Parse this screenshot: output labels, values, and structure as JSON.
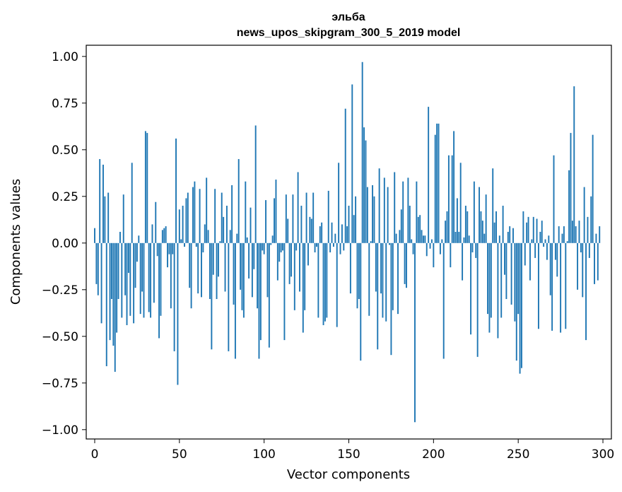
{
  "chart_data": {
    "type": "bar",
    "title_line1": "эльба",
    "title_line2": "news_upos_skipgram_300_5_2019 model",
    "xlabel": "Vector components",
    "ylabel": "Components values",
    "xlim": [
      -5,
      305
    ],
    "ylim": [
      -1.05,
      1.06
    ],
    "xticks": [
      0,
      50,
      100,
      150,
      200,
      250,
      300
    ],
    "xtick_labels": [
      "0",
      "50",
      "100",
      "150",
      "200",
      "250",
      "300"
    ],
    "yticks": [
      1.0,
      0.75,
      0.5,
      0.25,
      0.0,
      -0.25,
      -0.5,
      -0.75,
      -1.0
    ],
    "ytick_labels": [
      "1.00",
      "0.75",
      "0.50",
      "0.25",
      "0.00",
      "−0.25",
      "−0.50",
      "−0.75",
      "−1.00"
    ],
    "bar_color": "#1f77b4",
    "values": [
      0.08,
      -0.22,
      -0.28,
      0.45,
      -0.43,
      0.42,
      0.25,
      -0.66,
      0.27,
      -0.52,
      -0.3,
      -0.55,
      -0.69,
      -0.48,
      -0.3,
      0.06,
      -0.4,
      0.26,
      -0.28,
      -0.44,
      -0.16,
      -0.39,
      0.43,
      -0.43,
      -0.24,
      -0.1,
      0.04,
      -0.38,
      -0.26,
      -0.4,
      0.6,
      0.59,
      -0.37,
      -0.4,
      0.1,
      -0.32,
      0.22,
      -0.07,
      -0.51,
      -0.39,
      0.07,
      0.08,
      0.09,
      -0.13,
      -0.06,
      -0.35,
      -0.06,
      -0.58,
      0.56,
      -0.76,
      0.18,
      0.02,
      0.2,
      -0.02,
      0.24,
      0.27,
      -0.24,
      -0.35,
      0.3,
      0.33,
      -0.02,
      -0.27,
      0.29,
      -0.29,
      -0.05,
      0.1,
      0.35,
      0.07,
      -0.3,
      -0.57,
      -0.17,
      0.29,
      -0.3,
      -0.18,
      0.01,
      0.27,
      0.14,
      -0.26,
      0.2,
      -0.58,
      0.07,
      0.31,
      -0.33,
      -0.62,
      0.05,
      0.45,
      -0.25,
      -0.36,
      -0.4,
      0.33,
      0.03,
      -0.19,
      0.19,
      -0.29,
      -0.14,
      0.63,
      -0.35,
      -0.62,
      -0.52,
      -0.04,
      -0.06,
      0.23,
      -0.29,
      -0.56,
      -0.01,
      0.04,
      0.24,
      0.34,
      -0.2,
      -0.1,
      -0.05,
      -0.04,
      -0.52,
      0.26,
      0.13,
      -0.22,
      -0.18,
      0.26,
      -0.36,
      -0.04,
      0.38,
      -0.26,
      0.2,
      -0.48,
      -0.36,
      0.27,
      -0.12,
      0.14,
      0.13,
      0.27,
      -0.05,
      -0.02,
      -0.4,
      0.09,
      0.11,
      -0.44,
      -0.42,
      -0.4,
      0.28,
      -0.05,
      0.11,
      -0.02,
      0.05,
      -0.45,
      0.43,
      -0.06,
      0.1,
      -0.04,
      0.72,
      0.09,
      0.2,
      -0.27,
      0.85,
      0.15,
      0.25,
      -0.35,
      -0.3,
      -0.63,
      0.97,
      0.62,
      0.55,
      0.3,
      -0.39,
      0.01,
      0.31,
      0.25,
      -0.26,
      -0.57,
      0.4,
      -0.27,
      -0.4,
      0.35,
      -0.42,
      0.3,
      -0.01,
      -0.6,
      -0.36,
      0.38,
      0.05,
      -0.38,
      0.07,
      0.18,
      0.33,
      -0.22,
      -0.24,
      0.35,
      0.2,
      0.02,
      -0.06,
      -0.96,
      0.33,
      0.14,
      0.15,
      0.07,
      0.04,
      0.04,
      -0.07,
      0.73,
      -0.03,
      0.02,
      -0.13,
      0.58,
      0.64,
      0.64,
      -0.06,
      0.02,
      -0.62,
      0.12,
      0.17,
      0.47,
      -0.13,
      0.47,
      0.6,
      0.06,
      0.24,
      0.06,
      0.43,
      -0.2,
      0.03,
      0.2,
      0.17,
      0.04,
      -0.49,
      -0.05,
      0.33,
      -0.08,
      -0.61,
      0.3,
      0.17,
      0.12,
      0.05,
      0.26,
      -0.38,
      -0.48,
      -0.4,
      0.4,
      0.11,
      0.17,
      -0.51,
      0.04,
      -0.4,
      0.2,
      -0.17,
      -0.3,
      0.06,
      0.09,
      -0.33,
      0.08,
      -0.42,
      -0.63,
      -0.38,
      -0.7,
      -0.67,
      0.17,
      -0.12,
      0.11,
      0.14,
      -0.2,
      0.02,
      0.14,
      -0.08,
      0.13,
      -0.46,
      0.06,
      0.12,
      -0.02,
      0.02,
      -0.09,
      0.04,
      -0.28,
      -0.47,
      0.47,
      -0.09,
      -0.18,
      0.09,
      -0.48,
      0.05,
      0.09,
      -0.46,
      0.01,
      0.39,
      0.59,
      0.12,
      0.84,
      0.09,
      -0.25,
      0.12,
      -0.05,
      -0.29,
      0.3,
      -0.52,
      0.14,
      -0.08,
      0.25,
      0.58,
      -0.22,
      0.05,
      -0.2,
      0.09
    ]
  }
}
